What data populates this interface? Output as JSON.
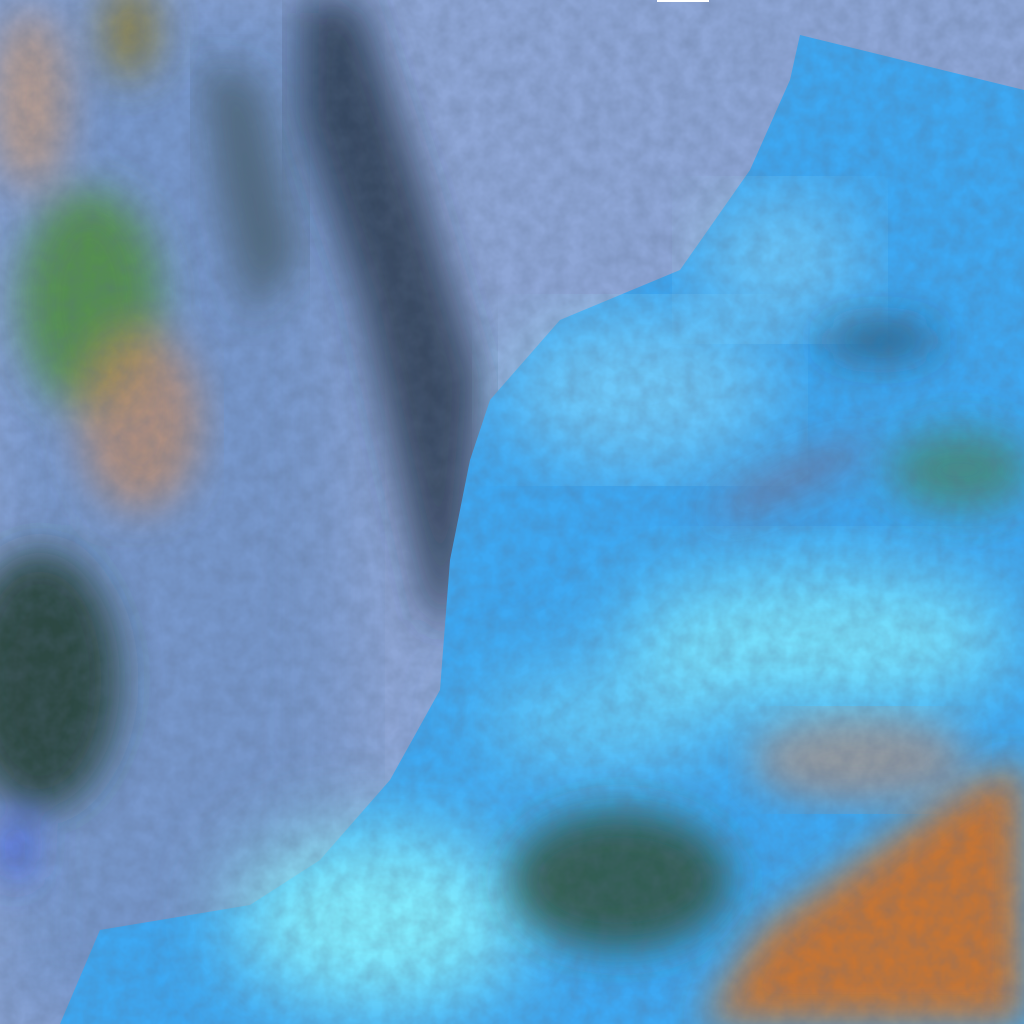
{
  "image": {
    "kind": "false-color satellite imagery",
    "colors": {
      "sea": "#8fa8d8",
      "land_bright": "#3fb0f5",
      "cloud_cyan": "#7ff3ff",
      "ridge_dark": "#1d2a3a",
      "vegetation_green": "#4d8a3a",
      "desert_orange": "#c9793a",
      "left_land": "#6f94c8"
    }
  }
}
